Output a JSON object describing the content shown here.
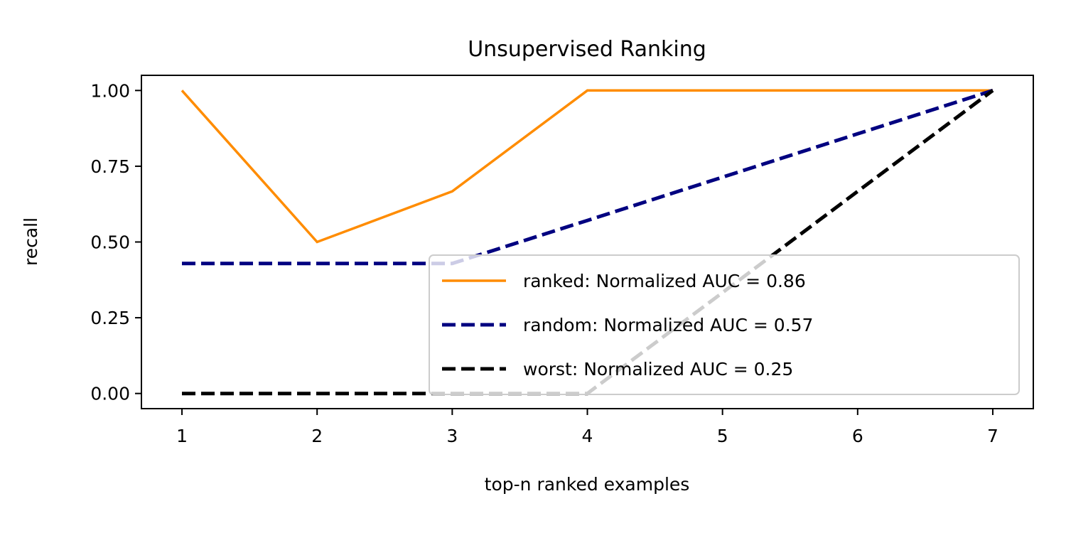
{
  "chart_data": {
    "type": "line",
    "title": "Unsupervised Ranking",
    "xlabel": "top-n ranked examples",
    "ylabel": "recall",
    "x": [
      1,
      2,
      3,
      4,
      5,
      6,
      7
    ],
    "xlim": [
      0.7,
      7.3
    ],
    "ylim": [
      -0.05,
      1.05
    ],
    "xticks": [
      1,
      2,
      3,
      4,
      5,
      6,
      7
    ],
    "yticks": [
      0,
      0.25,
      0.5,
      0.75,
      1.0
    ],
    "ytick_labels": [
      "0.00",
      "0.25",
      "0.50",
      "0.75",
      "1.00"
    ],
    "grid": false,
    "legend_position": "lower-right",
    "series": [
      {
        "name": "ranked: Normalized AUC = 0.86",
        "values": [
          1.0,
          0.5,
          0.667,
          1.0,
          1.0,
          1.0,
          1.0
        ],
        "color": "#ff8c00",
        "style": "solid"
      },
      {
        "name": "random: Normalized AUC = 0.57",
        "values": [
          0.429,
          0.429,
          0.429,
          0.571,
          0.714,
          0.857,
          1.0
        ],
        "color": "#000080",
        "style": "dashed"
      },
      {
        "name": "worst: Normalized AUC = 0.25",
        "values": [
          0.0,
          0.0,
          0.0,
          0.0,
          0.333,
          0.667,
          1.0
        ],
        "color": "#000000",
        "style": "dashed"
      }
    ]
  }
}
